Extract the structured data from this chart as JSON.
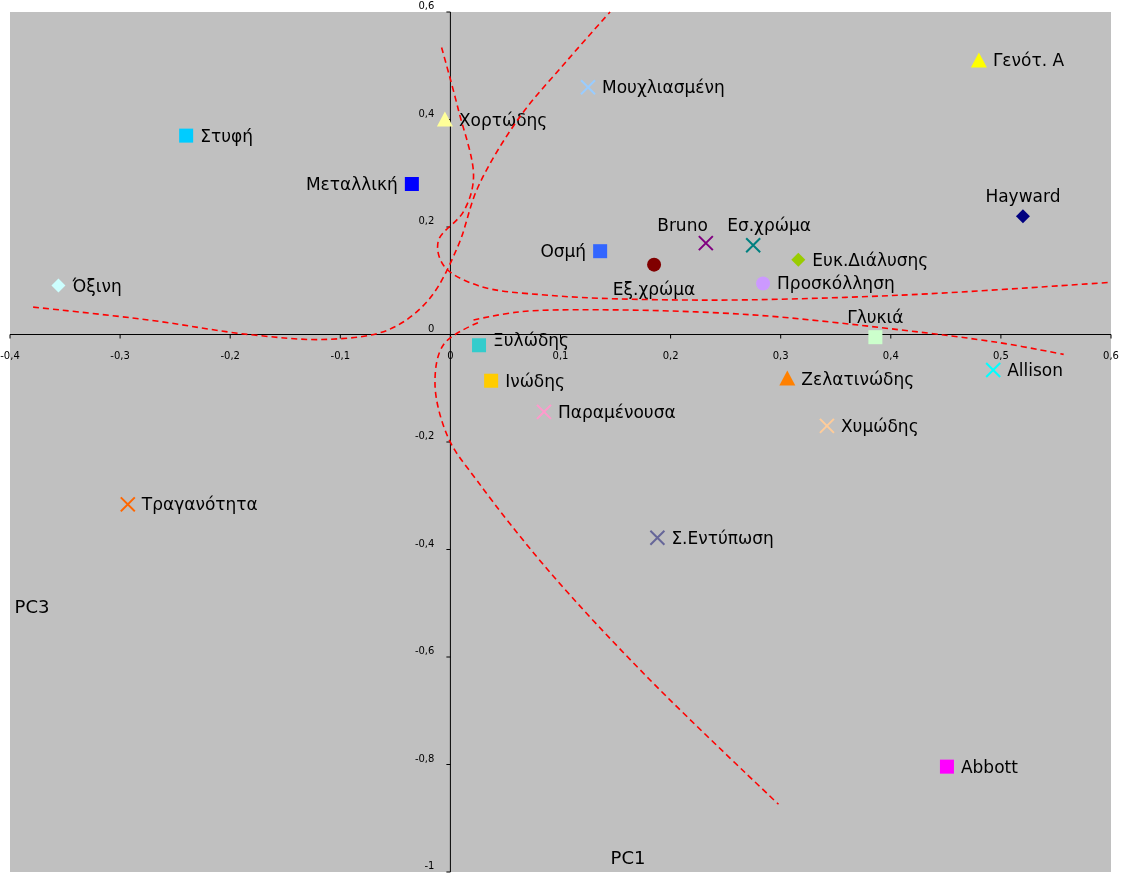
{
  "chart_data": {
    "type": "scatter",
    "xlabel": "PC1",
    "ylabel": "PC3",
    "xlim": [
      -0.4,
      0.6
    ],
    "ylim": [
      -1,
      0.6
    ],
    "xticks": [
      {
        "value": -0.4,
        "label": "-0,4"
      },
      {
        "value": -0.3,
        "label": "-0,3"
      },
      {
        "value": -0.2,
        "label": "-0,2"
      },
      {
        "value": -0.1,
        "label": "-0,1"
      },
      0,
      {
        "value": 0.1,
        "label": "0,1"
      },
      {
        "value": 0.2,
        "label": "0,2"
      },
      {
        "value": 0.3,
        "label": "0,3"
      },
      {
        "value": 0.4,
        "label": "0,4"
      },
      {
        "value": 0.5,
        "label": "0,5"
      },
      {
        "value": 0.6,
        "label": "0,6"
      }
    ],
    "yticks": [
      -1,
      {
        "value": -0.8,
        "label": "-0,8"
      },
      {
        "value": -0.6,
        "label": "-0,6"
      },
      {
        "value": -0.4,
        "label": "-0,4"
      },
      {
        "value": -0.2,
        "label": "-0,2"
      },
      0,
      {
        "value": 0.2,
        "label": "0,2"
      },
      {
        "value": 0.4,
        "label": "0,4"
      },
      {
        "value": 0.6,
        "label": "0,6"
      }
    ],
    "grid": false,
    "series": [
      {
        "name": "Γενότ. Α",
        "color": "#ffff00",
        "marker": "triangle",
        "x": [
          0.48
        ],
        "values": [
          0.51
        ]
      },
      {
        "name": "Μουχλιασμένη",
        "color": "#99ccff",
        "marker": "cross",
        "x": [
          0.125
        ],
        "values": [
          0.46
        ]
      },
      {
        "name": "Χορτώδης",
        "color": "#ffff99",
        "marker": "triangle",
        "x": [
          -0.005
        ],
        "values": [
          0.4
        ]
      },
      {
        "name": "Στυφή",
        "color": "#00ccff",
        "marker": "square",
        "x": [
          -0.24
        ],
        "values": [
          0.37
        ]
      },
      {
        "name": "Μεταλλική",
        "color": "#0000ff",
        "marker": "square",
        "x": [
          -0.035
        ],
        "values": [
          0.28
        ]
      },
      {
        "name": "Hayward",
        "color": "#000080",
        "marker": "diamond",
        "x": [
          0.52
        ],
        "values": [
          0.22
        ]
      },
      {
        "name": "Οσμή",
        "color": "#3366ff",
        "marker": "square",
        "x": [
          0.136
        ],
        "values": [
          0.155
        ]
      },
      {
        "name": "Bruno",
        "color": "#800080",
        "marker": "cross",
        "x": [
          0.232
        ],
        "values": [
          0.17
        ]
      },
      {
        "name": "Εσ.χρώμα",
        "color": "#008080",
        "marker": "cross",
        "x": [
          0.275
        ],
        "values": [
          0.166
        ]
      },
      {
        "name": "Ευκ.Διάλυσης",
        "color": "#99cc00",
        "marker": "diamond",
        "x": [
          0.316
        ],
        "values": [
          0.139
        ]
      },
      {
        "name": "Εξ.χρώμα",
        "color": "#800000",
        "marker": "circle",
        "x": [
          0.185
        ],
        "values": [
          0.13
        ]
      },
      {
        "name": "Όξινη",
        "color": "#ccffff",
        "marker": "diamond",
        "x": [
          -0.356
        ],
        "values": [
          0.091
        ]
      },
      {
        "name": "Προσκόλληση",
        "color": "#cc99ff",
        "marker": "circle",
        "x": [
          0.284
        ],
        "values": [
          0.095
        ]
      },
      {
        "name": "Γλυκιά",
        "color": "#ccffcc",
        "marker": "square",
        "x": [
          0.386
        ],
        "values": [
          -0.005
        ]
      },
      {
        "name": "Ξυλώδης",
        "color": "#33cccc",
        "marker": "square",
        "x": [
          0.026
        ],
        "values": [
          -0.02
        ]
      },
      {
        "name": "Allison",
        "color": "#00ffff",
        "marker": "cross",
        "x": [
          0.493
        ],
        "values": [
          -0.066
        ]
      },
      {
        "name": "Ινώδης",
        "color": "#ffcc00",
        "marker": "square",
        "x": [
          0.037
        ],
        "values": [
          -0.086
        ]
      },
      {
        "name": "Ζελατινώδης",
        "color": "#ff8000",
        "marker": "triangle",
        "x": [
          0.306
        ],
        "values": [
          -0.082
        ]
      },
      {
        "name": "Παραμένουσα",
        "color": "#ff99cc",
        "marker": "cross",
        "x": [
          0.085
        ],
        "values": [
          -0.144
        ]
      },
      {
        "name": "Χυμώδης",
        "color": "#ffcc99",
        "marker": "cross",
        "x": [
          0.342
        ],
        "values": [
          -0.17
        ]
      },
      {
        "name": "Τραγανότητα",
        "color": "#ff6600",
        "marker": "cross",
        "x": [
          -0.293
        ],
        "values": [
          -0.316
        ]
      },
      {
        "name": "Σ.Εντύπωση",
        "color": "#666699",
        "marker": "cross",
        "x": [
          0.188
        ],
        "values": [
          -0.378
        ]
      },
      {
        "name": "Abbott",
        "color": "#ff00ff",
        "marker": "square",
        "x": [
          0.451
        ],
        "values": [
          -0.804
        ]
      },
      {
        "type": "line",
        "color": "#ff0000",
        "line_style": "dashed",
        "x": [
          -0.379,
          -0.274,
          -0.183,
          -0.111,
          -0.056,
          -0.02,
          0.007,
          0.025,
          0.062,
          0.107,
          0.145
        ],
        "values": [
          0.051,
          0.027,
          0,
          -0.009,
          0.009,
          0.064,
          0.165,
          0.274,
          0.402,
          0.512,
          0.6
        ]
      },
      {
        "type": "line",
        "color": "#ff0000",
        "line_style": "dashed",
        "x": [
          -0.008,
          0.007,
          0.021,
          0.012,
          -0.011,
          -0.006,
          0.025,
          0.089,
          0.225,
          0.407,
          0.599
        ],
        "values": [
          0.534,
          0.42,
          0.293,
          0.229,
          0.174,
          0.128,
          0.091,
          0.073,
          0.064,
          0.073,
          0.097
        ]
      },
      {
        "type": "line",
        "color": "#ff0000",
        "line_style": "dashed",
        "x": [
          0.021,
          0.062,
          0.134,
          0.271,
          0.407,
          0.498,
          0.557
        ],
        "values": [
          0.027,
          0.042,
          0.046,
          0.037,
          0.009,
          -0.015,
          -0.037
        ]
      },
      {
        "type": "line",
        "color": "#ff0000",
        "line_style": "dashed",
        "x": [
          0.025,
          -0.006,
          -0.014,
          -0.002,
          0.025,
          0.089,
          0.18,
          0.298
        ],
        "values": [
          0.022,
          -0.018,
          -0.091,
          -0.192,
          -0.274,
          -0.439,
          -0.64,
          -0.874
        ]
      }
    ]
  }
}
